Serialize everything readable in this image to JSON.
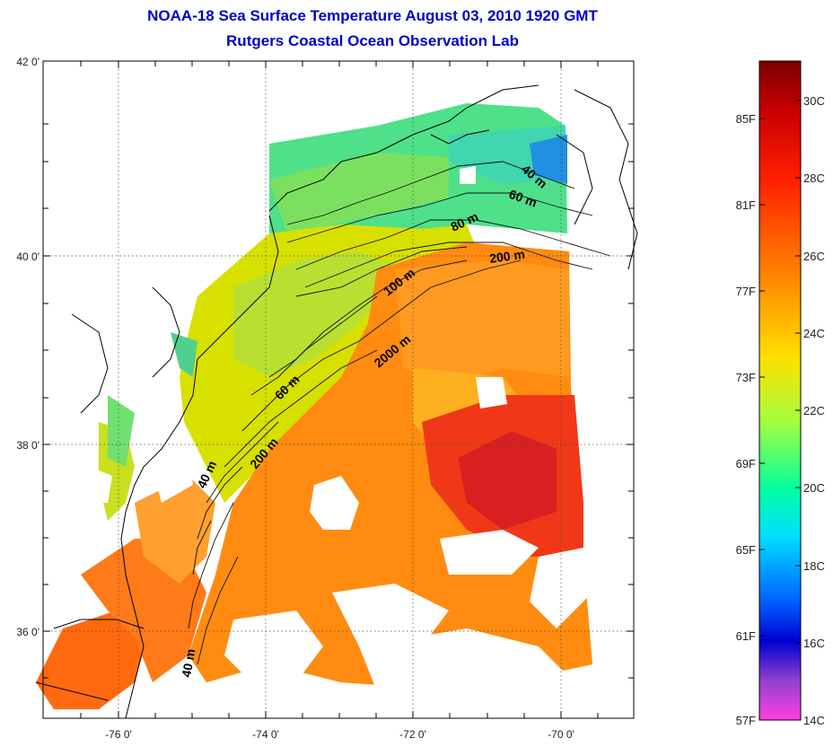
{
  "title": "NOAA-18 Sea Surface Temperature August 03, 2010 1920 GMT",
  "subtitle": "Rutgers Coastal Ocean Observation Lab",
  "map": {
    "lat_ticks": [
      "42 0'",
      "40 0'",
      "38 0'",
      "36 0'"
    ],
    "lon_ticks": [
      "-76 0'",
      "-74 0'",
      "-72 0'",
      "-70 0'"
    ],
    "grid": "dotted",
    "contour_labels": [
      "40 m",
      "60 m",
      "80 m",
      "200 m",
      "100 m",
      "2000 m",
      "60 m",
      "200 m",
      "40 m",
      "40 m"
    ]
  },
  "colorbar": {
    "fahrenheit_labels": [
      "85F",
      "81F",
      "77F",
      "73F",
      "69F",
      "65F",
      "61F",
      "57F"
    ],
    "celsius_labels": [
      "30C",
      "28C",
      "26C",
      "24C",
      "22C",
      "20C",
      "18C",
      "16C",
      "14C"
    ],
    "colors": [
      "#8b0000",
      "#ff0000",
      "#ff7f00",
      "#ffff00",
      "#00ff7f",
      "#00ffff",
      "#0000ff",
      "#ff00ff"
    ]
  }
}
